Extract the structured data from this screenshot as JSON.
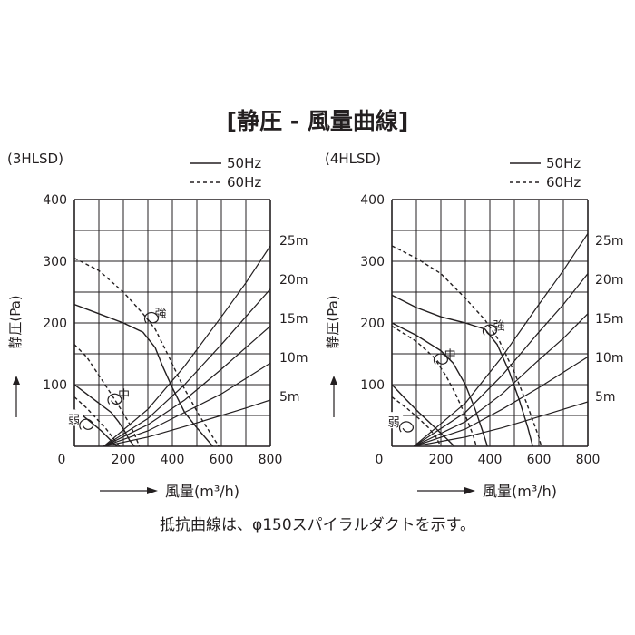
{
  "figure": {
    "title": "[静圧 - 風量曲線]",
    "footnote": "抵抗曲線は、φ150スパイラルダクトを示す。",
    "colors": {
      "ink": "#231f20",
      "background": "#ffffff"
    }
  },
  "chart_data": [
    {
      "type": "line",
      "model": "(3HLSD)",
      "legend": [
        {
          "label": "50Hz",
          "style": "solid"
        },
        {
          "label": "60Hz",
          "style": "dashed"
        }
      ],
      "legend_position": "top-right",
      "xlabel": "風量(m³/h)",
      "ylabel": "静圧(Pa)",
      "xlim": [
        0,
        800
      ],
      "ylim": [
        0,
        400
      ],
      "x_ticks": [
        "0",
        "200",
        "400",
        "600",
        "800"
      ],
      "y_ticks": [
        "100",
        "200",
        "300",
        "400"
      ],
      "grid": true,
      "fan_curves": [
        {
          "speed": "強",
          "freq": "50Hz",
          "points": [
            [
              0,
              230
            ],
            [
              100,
              215
            ],
            [
              200,
              200
            ],
            [
              280,
              185
            ],
            [
              330,
              160
            ],
            [
              360,
              130
            ],
            [
              400,
              95
            ],
            [
              450,
              55
            ],
            [
              500,
              30
            ],
            [
              565,
              0
            ]
          ]
        },
        {
          "speed": "強",
          "freq": "60Hz",
          "points": [
            [
              0,
              305
            ],
            [
              100,
              285
            ],
            [
              200,
              250
            ],
            [
              280,
              215
            ],
            [
              330,
              190
            ],
            [
              380,
              150
            ],
            [
              440,
              100
            ],
            [
              510,
              50
            ],
            [
              565,
              15
            ],
            [
              590,
              0
            ]
          ]
        },
        {
          "speed": "中",
          "freq": "50Hz",
          "points": [
            [
              0,
              100
            ],
            [
              50,
              85
            ],
            [
              100,
              70
            ],
            [
              150,
              55
            ],
            [
              180,
              40
            ],
            [
              205,
              25
            ],
            [
              225,
              10
            ],
            [
              245,
              0
            ]
          ]
        },
        {
          "speed": "中",
          "freq": "60Hz",
          "points": [
            [
              0,
              165
            ],
            [
              50,
              145
            ],
            [
              100,
              115
            ],
            [
              150,
              85
            ],
            [
              190,
              60
            ],
            [
              220,
              40
            ],
            [
              245,
              20
            ],
            [
              265,
              0
            ]
          ]
        },
        {
          "speed": "弱",
          "freq": "50Hz",
          "points": [
            [
              0,
              60
            ],
            [
              40,
              48
            ],
            [
              80,
              35
            ],
            [
              110,
              25
            ],
            [
              135,
              15
            ],
            [
              160,
              5
            ],
            [
              175,
              0
            ]
          ]
        },
        {
          "speed": "弱",
          "freq": "60Hz",
          "points": [
            [
              0,
              80
            ],
            [
              50,
              62
            ],
            [
              90,
              45
            ],
            [
              130,
              28
            ],
            [
              165,
              10
            ],
            [
              185,
              0
            ]
          ]
        }
      ],
      "speed_labels": [
        {
          "label": "強",
          "x": 345,
          "y": 215
        },
        {
          "label": "中",
          "x": 195,
          "y": 83
        },
        {
          "label": "弱",
          "x": 35,
          "y": 42
        }
      ],
      "resistance_curves": [
        {
          "label": "25m",
          "points": [
            [
              120,
              0
            ],
            [
              300,
              60
            ],
            [
              450,
              130
            ],
            [
              600,
              210
            ],
            [
              700,
              265
            ],
            [
              800,
              325
            ]
          ]
        },
        {
          "label": "20m",
          "points": [
            [
              120,
              0
            ],
            [
              300,
              45
            ],
            [
              450,
              100
            ],
            [
              600,
              165
            ],
            [
              700,
              210
            ],
            [
              800,
              255
            ]
          ]
        },
        {
          "label": "15m",
          "points": [
            [
              120,
              0
            ],
            [
              300,
              35
            ],
            [
              450,
              75
            ],
            [
              600,
              125
            ],
            [
              700,
              160
            ],
            [
              800,
              195
            ]
          ]
        },
        {
          "label": "10m",
          "points": [
            [
              120,
              0
            ],
            [
              300,
              25
            ],
            [
              450,
              55
            ],
            [
              600,
              85
            ],
            [
              700,
              110
            ],
            [
              800,
              135
            ]
          ]
        },
        {
          "label": "5m",
          "points": [
            [
              120,
              0
            ],
            [
              300,
              15
            ],
            [
              450,
              32
            ],
            [
              600,
              50
            ],
            [
              700,
              62
            ],
            [
              800,
              75
            ]
          ]
        }
      ]
    },
    {
      "type": "line",
      "model": "(4HLSD)",
      "legend": [
        {
          "label": "50Hz",
          "style": "solid"
        },
        {
          "label": "60Hz",
          "style": "dashed"
        }
      ],
      "legend_position": "top-right",
      "xlabel": "風量(m³/h)",
      "ylabel": "静圧(Pa)",
      "xlim": [
        0,
        800
      ],
      "ylim": [
        0,
        400
      ],
      "x_ticks": [
        "0",
        "200",
        "400",
        "600",
        "800"
      ],
      "y_ticks": [
        "100",
        "200",
        "300",
        "400"
      ],
      "grid": true,
      "fan_curves": [
        {
          "speed": "強",
          "freq": "50Hz",
          "points": [
            [
              0,
              245
            ],
            [
              100,
              225
            ],
            [
              200,
              210
            ],
            [
              300,
              200
            ],
            [
              380,
              190
            ],
            [
              430,
              165
            ],
            [
              480,
              120
            ],
            [
              520,
              75
            ],
            [
              555,
              30
            ],
            [
              575,
              0
            ]
          ]
        },
        {
          "speed": "強",
          "freq": "60Hz",
          "points": [
            [
              0,
              325
            ],
            [
              100,
              305
            ],
            [
              200,
              280
            ],
            [
              300,
              240
            ],
            [
              380,
              205
            ],
            [
              440,
              170
            ],
            [
              500,
              120
            ],
            [
              550,
              70
            ],
            [
              600,
              15
            ],
            [
              610,
              0
            ]
          ]
        },
        {
          "speed": "中",
          "freq": "50Hz",
          "points": [
            [
              0,
              200
            ],
            [
              100,
              180
            ],
            [
              200,
              155
            ],
            [
              250,
              135
            ],
            [
              300,
              100
            ],
            [
              340,
              60
            ],
            [
              370,
              25
            ],
            [
              390,
              0
            ]
          ]
        },
        {
          "speed": "中",
          "freq": "60Hz",
          "points": [
            [
              0,
              195
            ],
            [
              100,
              170
            ],
            [
              170,
              145
            ],
            [
              220,
              115
            ],
            [
              260,
              85
            ],
            [
              300,
              50
            ],
            [
              330,
              20
            ],
            [
              345,
              0
            ]
          ]
        },
        {
          "speed": "弱",
          "freq": "50Hz",
          "points": [
            [
              0,
              100
            ],
            [
              60,
              75
            ],
            [
              110,
              55
            ],
            [
              150,
              40
            ],
            [
              190,
              25
            ],
            [
              230,
              10
            ],
            [
              255,
              0
            ]
          ]
        },
        {
          "speed": "弱",
          "freq": "60Hz",
          "points": [
            [
              0,
              80
            ],
            [
              60,
              62
            ],
            [
              110,
              45
            ],
            [
              150,
              30
            ],
            [
              180,
              15
            ],
            [
              200,
              0
            ]
          ]
        }
      ],
      "speed_labels": [
        {
          "label": "強",
          "x": 430,
          "y": 195
        },
        {
          "label": "中",
          "x": 230,
          "y": 148
        },
        {
          "label": "弱",
          "x": 45,
          "y": 38
        }
      ],
      "resistance_curves": [
        {
          "label": "25m",
          "points": [
            [
              90,
              0
            ],
            [
              300,
              70
            ],
            [
              450,
              145
            ],
            [
              600,
              230
            ],
            [
              700,
              285
            ],
            [
              800,
              345
            ]
          ]
        },
        {
          "label": "20m",
          "points": [
            [
              90,
              0
            ],
            [
              300,
              55
            ],
            [
              450,
              115
            ],
            [
              600,
              185
            ],
            [
              700,
              230
            ],
            [
              800,
              280
            ]
          ]
        },
        {
          "label": "15m",
          "points": [
            [
              90,
              0
            ],
            [
              300,
              40
            ],
            [
              450,
              85
            ],
            [
              600,
              140
            ],
            [
              700,
              175
            ],
            [
              800,
              215
            ]
          ]
        },
        {
          "label": "10m",
          "points": [
            [
              90,
              0
            ],
            [
              300,
              28
            ],
            [
              450,
              60
            ],
            [
              600,
              95
            ],
            [
              700,
              120
            ],
            [
              800,
              145
            ]
          ]
        },
        {
          "label": "5m",
          "points": [
            [
              90,
              0
            ],
            [
              300,
              15
            ],
            [
              450,
              30
            ],
            [
              600,
              48
            ],
            [
              700,
              60
            ],
            [
              800,
              72
            ]
          ]
        }
      ]
    }
  ]
}
